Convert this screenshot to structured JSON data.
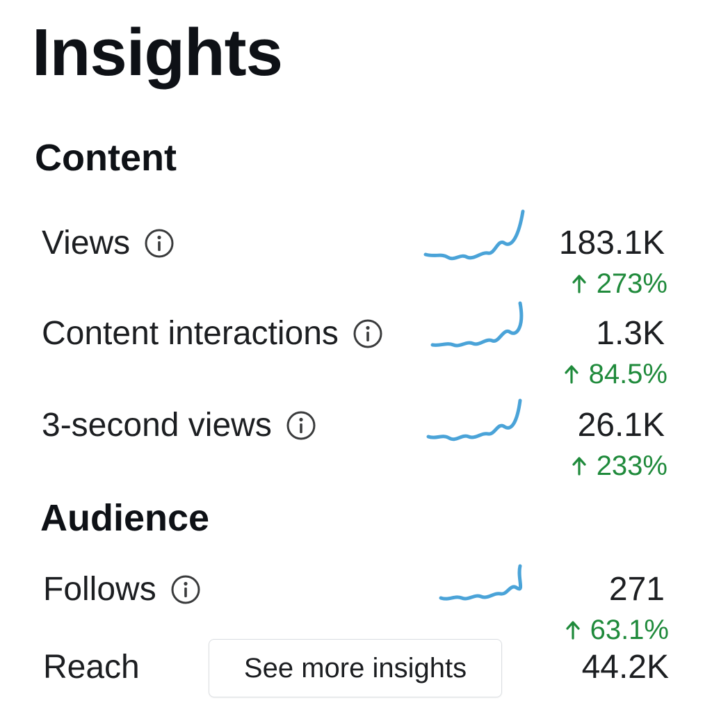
{
  "title": "Insights",
  "sections": {
    "content": {
      "heading": "Content"
    },
    "audience": {
      "heading": "Audience"
    }
  },
  "metrics": {
    "views": {
      "label": "Views",
      "value": "183.1K",
      "change": "273%"
    },
    "content_interactions": {
      "label": "Content interactions",
      "value": "1.3K",
      "change": "84.5%"
    },
    "three_second_views": {
      "label": "3-second views",
      "value": "26.1K",
      "change": "233%"
    },
    "follows": {
      "label": "Follows",
      "value": "271",
      "change": "63.1%"
    },
    "reach": {
      "label": "Reach",
      "value": "44.2K"
    }
  },
  "see_more_button": "See more insights",
  "colors": {
    "sparkline": "#4aa3d8",
    "positive_change": "#1f8a3b",
    "info_icon": "#3a3b3c"
  },
  "icons": {
    "info": "info-circle-icon",
    "increase": "arrow-up-icon"
  }
}
